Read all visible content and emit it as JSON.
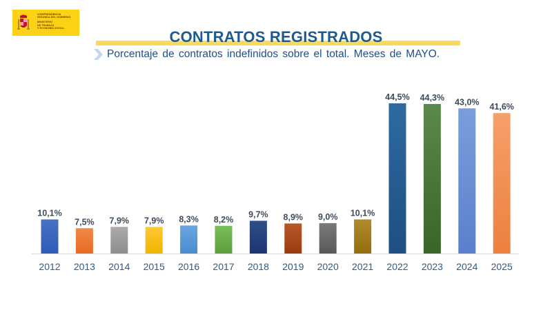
{
  "logo": {
    "lines_top": [
      "VICEPRESIDENCIA",
      "SEGUNDA DEL GOBIERNO"
    ],
    "lines_bottom": [
      "MINISTERIO",
      "DE TRABAJO",
      "Y ECONOMÍA SOCIAL"
    ],
    "icon": "coat-of-arms-icon"
  },
  "header": {
    "title": "CONTRATOS REGISTRADOS",
    "subtitle": "Porcentaje de contratos indefinidos sobre el total. Meses de MAYO.",
    "bullet_icon": "chevron-right-icon"
  },
  "chart_data": {
    "type": "bar",
    "title": "CONTRATOS REGISTRADOS",
    "subtitle": "Porcentaje de contratos indefinidos sobre el total. Meses de MAYO.",
    "xlabel": "",
    "ylabel": "",
    "ylim": [
      0,
      45
    ],
    "grid": false,
    "legend": "none",
    "categories": [
      "2012",
      "2013",
      "2014",
      "2015",
      "2016",
      "2017",
      "2018",
      "2019",
      "2020",
      "2021",
      "2022",
      "2023",
      "2024",
      "2025"
    ],
    "values": [
      10.1,
      7.5,
      7.9,
      7.9,
      8.3,
      8.2,
      9.7,
      8.9,
      9.0,
      10.1,
      44.5,
      44.3,
      43.0,
      41.6
    ],
    "labels": [
      "10,1%",
      "7,5%",
      "7,9%",
      "7,9%",
      "8,3%",
      "8,2%",
      "9,7%",
      "8,9%",
      "9,0%",
      "10,1%",
      "44,5%",
      "44,3%",
      "43,0%",
      "41,6%"
    ],
    "colors": [
      [
        "#4a72c4",
        "#2d5bb8"
      ],
      [
        "#f2894a",
        "#e8691f"
      ],
      [
        "#ababab",
        "#8c8c8c"
      ],
      [
        "#ffc933",
        "#f0b400"
      ],
      [
        "#6aa6df",
        "#4a8ad0"
      ],
      [
        "#7bbf5a",
        "#5a9e3a"
      ],
      [
        "#2f4f8a",
        "#1d3470"
      ],
      [
        "#b5582c",
        "#983c0e"
      ],
      [
        "#7a7a7a",
        "#585858"
      ],
      [
        "#b08a2c",
        "#946e0c"
      ],
      [
        "#2f6aa0",
        "#1d4f82"
      ],
      [
        "#5a8a4a",
        "#3a6428"
      ],
      [
        "#7a9edc",
        "#5a80cc"
      ],
      [
        "#f6a06a",
        "#ec8040"
      ]
    ]
  }
}
